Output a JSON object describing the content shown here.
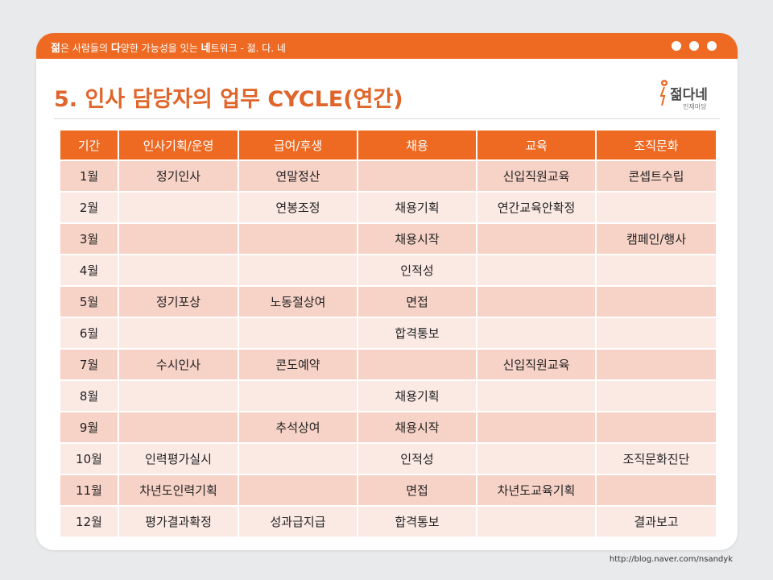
{
  "header": {
    "tagline_parts": [
      "젊",
      "은 사람들의 ",
      "다",
      "양한 가능성을 잇는 ",
      "네",
      "트워크 - 젊. 다. 네"
    ]
  },
  "title": "5. 인사 담당자의 업무 CYCLE(연간)",
  "logo": {
    "text": "젊다네",
    "sub": "인재마당"
  },
  "table": {
    "headers": [
      "기간",
      "인사기획/운영",
      "급여/후생",
      "채용",
      "교육",
      "조직문화"
    ],
    "rows": [
      [
        "1월",
        "정기인사",
        "연말정산",
        "",
        "신입직원교육",
        "콘셉트수립"
      ],
      [
        "2월",
        "",
        "연봉조정",
        "채용기획",
        "연간교육안확정",
        ""
      ],
      [
        "3월",
        "",
        "",
        "채용시작",
        "",
        "캠페인/행사"
      ],
      [
        "4월",
        "",
        "",
        "인적성",
        "",
        ""
      ],
      [
        "5월",
        "정기포상",
        "노동절상여",
        "면접",
        "",
        ""
      ],
      [
        "6월",
        "",
        "",
        "합격통보",
        "",
        ""
      ],
      [
        "7월",
        "수시인사",
        "콘도예약",
        "",
        "신입직원교육",
        ""
      ],
      [
        "8월",
        "",
        "",
        "채용기획",
        "",
        ""
      ],
      [
        "9월",
        "",
        "추석상여",
        "채용시작",
        "",
        ""
      ],
      [
        "10월",
        "인력평가실시",
        "",
        "인적성",
        "",
        "조직문화진단"
      ],
      [
        "11월",
        "차년도인력기획",
        "",
        "면접",
        "차년도교육기획",
        ""
      ],
      [
        "12월",
        "평가결과확정",
        "성과급지급",
        "합격통보",
        "",
        "결과보고"
      ]
    ]
  },
  "source": "http://blog.naver.com/nsandyk",
  "colors": {
    "accent": "#ee6a23",
    "row_dark": "#f7d2c7",
    "row_light": "#fbe9e4",
    "background": "#e9eaec"
  }
}
